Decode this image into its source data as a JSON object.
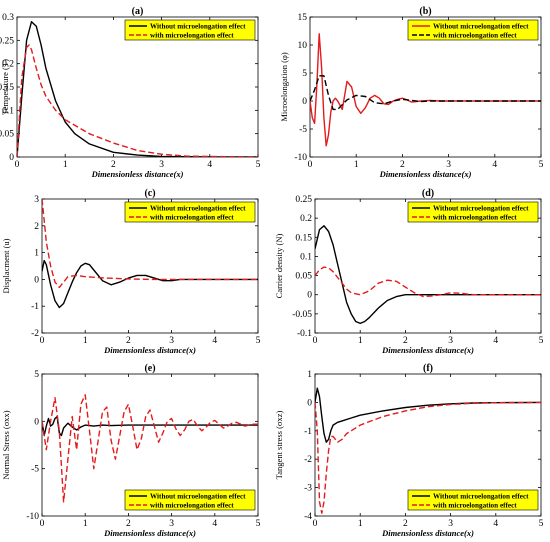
{
  "colors": {
    "black": "#000000",
    "red": "#e41a1c",
    "legend_bg": "#ffff00"
  },
  "chart_data": [
    {
      "type": "line",
      "panel": "(a)",
      "ylabel": "Temperature (T)",
      "xlabel": "Dimensionless distance(x)",
      "xlim": [
        0,
        5
      ],
      "ylim": [
        0,
        0.3
      ],
      "xticks": [
        0,
        1,
        2,
        3,
        4,
        5
      ],
      "yticks": [
        0,
        0.05,
        0.1,
        0.15,
        0.2,
        0.25,
        0.3
      ],
      "ytick_labels": [
        "0",
        "0.05",
        "0.1",
        "0.15",
        "0.2",
        "0.25",
        "0.3"
      ],
      "legend_position": "top-right",
      "series": [
        {
          "name": "Without microelongation effect",
          "color": "black",
          "dash": "solid",
          "x": [
            0,
            0.1,
            0.2,
            0.3,
            0.4,
            0.5,
            0.6,
            0.8,
            1.0,
            1.2,
            1.5,
            2.0,
            2.5,
            3.0,
            4.0,
            5.0
          ],
          "y": [
            0,
            0.13,
            0.25,
            0.29,
            0.28,
            0.24,
            0.19,
            0.12,
            0.075,
            0.05,
            0.028,
            0.01,
            0.004,
            0.001,
            0,
            0
          ]
        },
        {
          "name": "with microelongation effect",
          "color": "red",
          "dash": "dashed",
          "x": [
            0,
            0.1,
            0.2,
            0.25,
            0.3,
            0.4,
            0.5,
            0.6,
            0.8,
            1.0,
            1.5,
            2.0,
            2.5,
            3.0,
            3.5,
            4.0,
            5.0
          ],
          "y": [
            0,
            0.17,
            0.235,
            0.24,
            0.23,
            0.19,
            0.155,
            0.13,
            0.1,
            0.08,
            0.05,
            0.03,
            0.014,
            0.006,
            0.002,
            0.001,
            0
          ]
        }
      ]
    },
    {
      "type": "line",
      "panel": "(b)",
      "ylabel": "Microelongation (φ)",
      "xlabel": "Dimensionless distance(x)",
      "xlim": [
        0,
        5
      ],
      "ylim": [
        -10,
        15
      ],
      "xticks": [
        0,
        1,
        2,
        3,
        4,
        5
      ],
      "yticks": [
        -10,
        -5,
        0,
        5,
        10,
        15
      ],
      "ytick_labels": [
        "-10",
        "-5",
        "0",
        "5",
        "10",
        "15"
      ],
      "legend_position": "top-right",
      "series": [
        {
          "name": "Without microelongation effect",
          "color": "red",
          "dash": "solid",
          "x": [
            0,
            0.05,
            0.1,
            0.15,
            0.2,
            0.25,
            0.3,
            0.35,
            0.4,
            0.45,
            0.5,
            0.55,
            0.6,
            0.7,
            0.8,
            0.9,
            1.0,
            1.1,
            1.2,
            1.3,
            1.4,
            1.5,
            1.6,
            1.7,
            1.8,
            1.9,
            2.0,
            2.1,
            2.2,
            2.4,
            2.6,
            2.8,
            3.0,
            3.5,
            4.0,
            5.0
          ],
          "y": [
            0,
            -3,
            -4,
            3,
            12,
            6,
            -3,
            -8,
            -6,
            -2,
            0,
            0.5,
            0,
            -1.5,
            3.5,
            2.5,
            -1,
            -2.2,
            -1.2,
            0.5,
            1,
            0.5,
            -0.5,
            -0.6,
            0,
            0.3,
            0.5,
            0.2,
            -0.2,
            0,
            0.1,
            0,
            0,
            0,
            0,
            0
          ]
        },
        {
          "name": "with microelongation effect",
          "color": "black",
          "dash": "dashed",
          "x": [
            0,
            0.1,
            0.2,
            0.3,
            0.4,
            0.5,
            0.6,
            0.8,
            1.0,
            1.2,
            1.4,
            1.6,
            1.8,
            2.0,
            2.2,
            2.4,
            2.6,
            3.0,
            3.5,
            4.0,
            5.0
          ],
          "y": [
            0,
            2,
            4.5,
            4.5,
            1,
            -1.5,
            -1.5,
            0.2,
            1,
            0.8,
            -0.3,
            -0.5,
            0,
            0.3,
            0.1,
            -0.1,
            0,
            0,
            0,
            0,
            0
          ]
        }
      ]
    },
    {
      "type": "line",
      "panel": "(c)",
      "ylabel": "Displacment (u)",
      "xlabel": "Dimensionless distance(x)",
      "xlim": [
        0,
        5
      ],
      "ylim": [
        -2,
        3
      ],
      "xticks": [
        0,
        1,
        2,
        3,
        4,
        5
      ],
      "yticks": [
        -2,
        -1,
        0,
        1,
        2,
        3
      ],
      "ytick_labels": [
        "-2",
        "-1",
        "0",
        "1",
        "2",
        "3"
      ],
      "legend_position": "top-right",
      "series": [
        {
          "name": "Without microelongation effect",
          "color": "black",
          "dash": "solid",
          "x": [
            0,
            0.05,
            0.1,
            0.2,
            0.3,
            0.4,
            0.5,
            0.6,
            0.7,
            0.8,
            0.9,
            1.0,
            1.1,
            1.2,
            1.4,
            1.6,
            1.8,
            2.0,
            2.2,
            2.4,
            2.6,
            2.8,
            3.0,
            3.2,
            3.5,
            4.0,
            4.5,
            5.0
          ],
          "y": [
            0.3,
            0.7,
            0.55,
            -0.2,
            -0.8,
            -1.05,
            -0.9,
            -0.5,
            -0.1,
            0.25,
            0.5,
            0.6,
            0.55,
            0.35,
            -0.05,
            -0.2,
            -0.1,
            0.05,
            0.15,
            0.15,
            0.05,
            -0.05,
            -0.05,
            0,
            0,
            0,
            0,
            0
          ]
        },
        {
          "name": "with microelongation effect",
          "color": "red",
          "dash": "dashed",
          "x": [
            0,
            0.05,
            0.1,
            0.2,
            0.3,
            0.4,
            0.5,
            0.6,
            0.8,
            1.0,
            1.5,
            2.0,
            2.5,
            3.0,
            4.0,
            5.0
          ],
          "y": [
            3,
            2.2,
            1.4,
            0.5,
            -0.1,
            -0.3,
            -0.1,
            0.1,
            0.15,
            0.1,
            0.05,
            0.02,
            0,
            0,
            0,
            0
          ]
        }
      ]
    },
    {
      "type": "line",
      "panel": "(d)",
      "ylabel": "Carrier density (N)",
      "xlabel": "Dimensionless distance(x)",
      "xlim": [
        0,
        5
      ],
      "ylim": [
        -0.1,
        0.25
      ],
      "xticks": [
        0,
        1,
        2,
        3,
        4,
        5
      ],
      "yticks": [
        -0.1,
        -0.05,
        0,
        0.05,
        0.1,
        0.15,
        0.2,
        0.25
      ],
      "ytick_labels": [
        "-0.1",
        "-0.05",
        "0",
        "0.05",
        "0.1",
        "0.15",
        "0.2",
        "0.25"
      ],
      "legend_position": "top-right",
      "series": [
        {
          "name": "Without microelongation effect",
          "color": "black",
          "dash": "solid",
          "x": [
            0,
            0.1,
            0.2,
            0.3,
            0.4,
            0.5,
            0.6,
            0.7,
            0.8,
            0.9,
            1.0,
            1.1,
            1.2,
            1.4,
            1.6,
            1.8,
            2.0,
            2.2,
            2.5,
            3.0,
            4.0,
            5.0
          ],
          "y": [
            0.12,
            0.17,
            0.18,
            0.165,
            0.13,
            0.08,
            0.03,
            -0.02,
            -0.05,
            -0.07,
            -0.075,
            -0.07,
            -0.06,
            -0.035,
            -0.015,
            -0.005,
            0,
            0,
            0,
            0,
            0,
            0
          ]
        },
        {
          "name": "with microelongation effect",
          "color": "red",
          "dash": "dashed",
          "x": [
            0,
            0.1,
            0.2,
            0.3,
            0.4,
            0.5,
            0.6,
            0.7,
            0.8,
            1.0,
            1.2,
            1.4,
            1.6,
            1.8,
            2.0,
            2.2,
            2.4,
            2.6,
            2.8,
            3.0,
            3.2,
            3.5,
            4.0,
            5.0
          ],
          "y": [
            0.05,
            0.065,
            0.072,
            0.07,
            0.06,
            0.045,
            0.03,
            0.015,
            0.005,
            0,
            0.01,
            0.03,
            0.038,
            0.035,
            0.02,
            0.005,
            -0.005,
            -0.003,
            0,
            0.005,
            0.004,
            0,
            0,
            0
          ]
        }
      ]
    },
    {
      "type": "line",
      "panel": "(e)",
      "ylabel": "Normal Stress (σxx)",
      "xlabel": "Dimensionless distance(x)",
      "xlim": [
        0,
        5
      ],
      "ylim": [
        -10,
        5
      ],
      "xticks": [
        0,
        1,
        2,
        3,
        4,
        5
      ],
      "yticks": [
        -10,
        -5,
        0,
        5
      ],
      "ytick_labels": [
        "-10",
        "-5",
        "0",
        "5"
      ],
      "legend_position": "bottom-right",
      "series": [
        {
          "name": "Without microelongation effect",
          "color": "black",
          "dash": "solid",
          "x": [
            0,
            0.05,
            0.1,
            0.15,
            0.2,
            0.25,
            0.3,
            0.35,
            0.4,
            0.45,
            0.5,
            0.6,
            0.7,
            0.8,
            0.9,
            1.0,
            1.2,
            1.4,
            1.6,
            2.0,
            2.5,
            3.0,
            4.0,
            5.0
          ],
          "y": [
            0,
            -1.5,
            -0.5,
            0.3,
            -0.5,
            -0.3,
            0.3,
            0.5,
            -1.2,
            -1.5,
            -0.7,
            -0.2,
            -0.6,
            -0.9,
            -0.6,
            -0.4,
            -0.5,
            -0.4,
            -0.45,
            -0.4,
            -0.4,
            -0.4,
            -0.4,
            -0.4
          ]
        },
        {
          "name": "with microelongation effect",
          "color": "red",
          "dash": "dashed",
          "x": [
            0,
            0.1,
            0.2,
            0.3,
            0.4,
            0.5,
            0.6,
            0.7,
            0.8,
            0.9,
            1.0,
            1.1,
            1.2,
            1.3,
            1.4,
            1.5,
            1.6,
            1.7,
            1.8,
            1.9,
            2.0,
            2.1,
            2.2,
            2.3,
            2.4,
            2.5,
            2.6,
            2.7,
            2.8,
            2.9,
            3.0,
            3.1,
            3.2,
            3.3,
            3.4,
            3.5,
            3.6,
            3.7,
            3.8,
            3.9,
            4.0,
            4.1,
            4.2,
            4.3,
            4.4,
            4.5,
            4.6,
            4.7,
            4.8,
            4.9,
            5.0
          ],
          "y": [
            0,
            -3,
            0,
            2.5,
            -1,
            -8.5,
            -4,
            0.5,
            -3,
            1.8,
            2.8,
            -1,
            -5,
            -2,
            1,
            1.5,
            -2,
            -4,
            -1.5,
            1,
            1.8,
            -0.5,
            -3,
            -1.8,
            0.5,
            1.2,
            -0.5,
            -2.2,
            -1.2,
            0,
            0.3,
            -0.8,
            -1.5,
            -0.9,
            0,
            0.2,
            -0.5,
            -1,
            -0.6,
            -0.1,
            0.1,
            -0.3,
            -0.7,
            -0.5,
            -0.2,
            -0.1,
            -0.3,
            -0.5,
            -0.4,
            -0.3,
            -0.3
          ]
        }
      ]
    },
    {
      "type": "line",
      "panel": "(f)",
      "ylabel": "Tangent stress (σxz)",
      "xlabel": "Dimensionless distance(x)",
      "xlim": [
        0,
        5
      ],
      "ylim": [
        -4,
        1
      ],
      "xticks": [
        0,
        1,
        2,
        3,
        4,
        5
      ],
      "yticks": [
        -4,
        -3,
        -2,
        -1,
        0,
        1
      ],
      "ytick_labels": [
        "-4",
        "-3",
        "-2",
        "-1",
        "0",
        "1"
      ],
      "legend_position": "bottom-right",
      "series": [
        {
          "name": "Without microelongation effect",
          "color": "black",
          "dash": "solid",
          "x": [
            0,
            0.05,
            0.1,
            0.15,
            0.2,
            0.25,
            0.3,
            0.35,
            0.4,
            0.5,
            0.6,
            0.8,
            1.0,
            1.5,
            2.0,
            2.5,
            3.0,
            3.5,
            4.0,
            5.0
          ],
          "y": [
            0,
            0.5,
            0.2,
            -0.5,
            -1.1,
            -1.4,
            -1.3,
            -1.0,
            -0.8,
            -0.7,
            -0.65,
            -0.55,
            -0.45,
            -0.3,
            -0.18,
            -0.1,
            -0.05,
            -0.02,
            -0.01,
            0
          ]
        },
        {
          "name": "with microelongation effect",
          "color": "red",
          "dash": "dashed",
          "x": [
            0,
            0.05,
            0.1,
            0.15,
            0.2,
            0.25,
            0.3,
            0.35,
            0.4,
            0.5,
            0.6,
            0.7,
            0.8,
            1.0,
            1.5,
            2.0,
            2.5,
            3.0,
            3.5,
            4.0,
            5.0
          ],
          "y": [
            0,
            -1,
            -3.5,
            -3.9,
            -3.5,
            -2.5,
            -1.7,
            -1.2,
            -1.2,
            -1.4,
            -1.3,
            -1.1,
            -1.0,
            -0.8,
            -0.5,
            -0.3,
            -0.15,
            -0.07,
            -0.03,
            -0.01,
            0
          ]
        }
      ]
    }
  ]
}
